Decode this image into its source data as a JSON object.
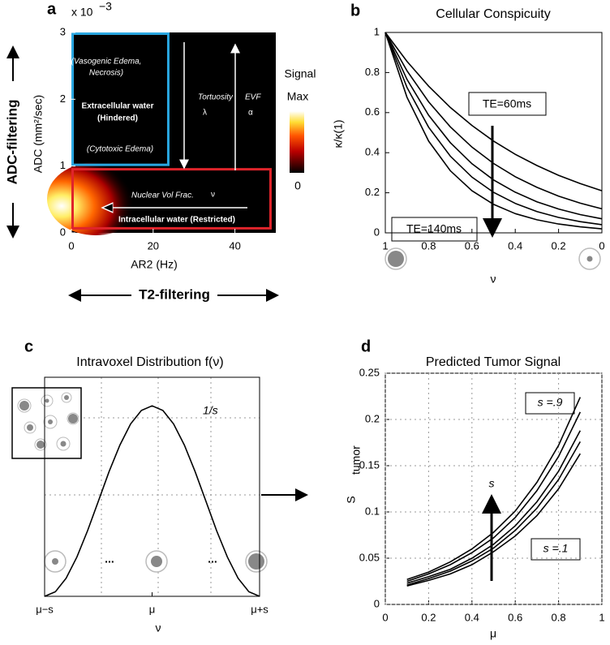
{
  "chart_data": [
    {
      "type": "heatmap",
      "panel": "a",
      "x_label": "AR2 (Hz)",
      "y_label": "ADC (mm²/sec)",
      "y_multiplier": "x 10",
      "y_multiplier_exponent": "−3",
      "xlim": [
        0,
        50
      ],
      "xticks": [
        0,
        20,
        40
      ],
      "ylim": [
        0,
        3
      ],
      "yticks": [
        0,
        1,
        2,
        3
      ],
      "regions": [
        {
          "color": "#29a6e0",
          "xlim": [
            0,
            24
          ],
          "ylim": [
            1,
            3
          ]
        },
        {
          "color": "#e0242b",
          "xlim": [
            0,
            49
          ],
          "ylim": [
            0.05,
            0.97
          ]
        }
      ],
      "colorbar": {
        "title": "Signal",
        "max_label": "Max",
        "min_label": "0"
      },
      "annotations": {
        "vasogenic": [
          "(Vasogenic Edema,",
          "Necrosis)"
        ],
        "extracellular": [
          "Extracellular water",
          "(Hindered)"
        ],
        "cytotoxic": "(Cytotoxic Edema)",
        "tortuosity": "Tortuosity",
        "lambda": "λ",
        "evf": "EVF",
        "alpha": "α",
        "nuclear": "Nuclear Vol Frac.",
        "nu": "ν",
        "intracellular": "Intracellular water (Restricted)"
      },
      "vertical_axis_label": "ADC-filtering",
      "horizontal_axis_label": "T2-filtering"
    },
    {
      "type": "line",
      "panel": "b",
      "title": "Cellular Conspicuity",
      "x_label": "ν",
      "y_label": "κ/κ(1)",
      "x": [
        1,
        0.9,
        0.8,
        0.7,
        0.6,
        0.5,
        0.4,
        0.3,
        0.2,
        0.1,
        0
      ],
      "xlim": [
        1,
        0
      ],
      "xticks": [
        1,
        0.8,
        0.6,
        0.4,
        0.2,
        0
      ],
      "ylim": [
        0,
        1
      ],
      "yticks": [
        0,
        0.2,
        0.4,
        0.6,
        0.8,
        1
      ],
      "grid": false,
      "series": [
        {
          "color": "#000000",
          "values": [
            1,
            0.856,
            0.732,
            0.626,
            0.536,
            0.458,
            0.392,
            0.336,
            0.287,
            0.246,
            0.21
          ]
        },
        {
          "color": "#000000",
          "values": [
            1,
            0.809,
            0.654,
            0.529,
            0.428,
            0.346,
            0.28,
            0.227,
            0.183,
            0.148,
            0.12
          ]
        },
        {
          "color": "#000000",
          "values": [
            1,
            0.766,
            0.587,
            0.45,
            0.345,
            0.264,
            0.203,
            0.155,
            0.119,
            0.091,
            0.07
          ]
        },
        {
          "color": "#000000",
          "values": [
            1,
            0.726,
            0.527,
            0.383,
            0.278,
            0.202,
            0.147,
            0.106,
            0.077,
            0.056,
            0.041
          ]
        },
        {
          "color": "#000000",
          "values": [
            1,
            0.677,
            0.458,
            0.31,
            0.21,
            0.142,
            0.096,
            0.065,
            0.044,
            0.03,
            0.02
          ]
        }
      ],
      "annotations": [
        "TE=60ms",
        "TE=140ms"
      ]
    },
    {
      "type": "line",
      "panel": "c",
      "title": "Intravoxel Distribution f(ν)",
      "x_label": "ν",
      "peak_label": "1/s",
      "x": [
        -1,
        -0.9,
        -0.8,
        -0.7,
        -0.6,
        -0.5,
        -0.4,
        -0.3,
        -0.2,
        -0.1,
        0,
        0.1,
        0.2,
        0.3,
        0.4,
        0.5,
        0.6,
        0.7,
        0.8,
        0.9,
        1
      ],
      "xlim": [
        -1,
        1
      ],
      "xticks": [
        {
          "value": -1,
          "label": "μ−s"
        },
        {
          "value": 0,
          "label": "μ"
        },
        {
          "value": 1,
          "label": "μ+s"
        }
      ],
      "ylim": [
        0,
        1.15
      ],
      "grid": false,
      "series": [
        {
          "color": "#000000",
          "values": [
            0,
            0.024,
            0.095,
            0.206,
            0.345,
            0.5,
            0.655,
            0.794,
            0.905,
            0.976,
            1,
            0.976,
            0.905,
            0.794,
            0.655,
            0.5,
            0.345,
            0.206,
            0.095,
            0.024,
            0
          ]
        }
      ],
      "ellipsis": [
        "...",
        "..."
      ]
    },
    {
      "type": "line",
      "panel": "d",
      "title": "Predicted Tumor Signal",
      "x_label": "μ",
      "y_label": "S",
      "y_label_subscript": "tumor",
      "x": [
        0.1,
        0.2,
        0.3,
        0.4,
        0.5,
        0.6,
        0.7,
        0.8,
        0.9
      ],
      "xlim": [
        0,
        1
      ],
      "xticks": [
        0,
        0.2,
        0.4,
        0.6,
        0.8,
        1
      ],
      "ylim": [
        0,
        0.25
      ],
      "yticks": [
        0,
        0.05,
        0.1,
        0.15,
        0.2,
        0.25
      ],
      "grid": true,
      "series": [
        {
          "color": "#000000",
          "values": [
            0.027,
            0.035,
            0.046,
            0.06,
            0.078,
            0.101,
            0.132,
            0.172,
            0.224
          ]
        },
        {
          "color": "#000000",
          "values": [
            0.025,
            0.033,
            0.043,
            0.056,
            0.072,
            0.094,
            0.123,
            0.16,
            0.208
          ]
        },
        {
          "color": "#000000",
          "values": [
            0.023,
            0.03,
            0.038,
            0.05,
            0.065,
            0.085,
            0.111,
            0.144,
            0.188
          ]
        },
        {
          "color": "#000000",
          "values": [
            0.021,
            0.028,
            0.036,
            0.047,
            0.061,
            0.08,
            0.104,
            0.135,
            0.176
          ]
        },
        {
          "color": "#000000",
          "values": [
            0.02,
            0.026,
            0.033,
            0.043,
            0.057,
            0.074,
            0.096,
            0.125,
            0.163
          ]
        }
      ],
      "annotations": [
        "s =.9",
        "s =.1",
        "s"
      ]
    }
  ],
  "panel_letters": [
    "a",
    "b",
    "c",
    "d"
  ]
}
